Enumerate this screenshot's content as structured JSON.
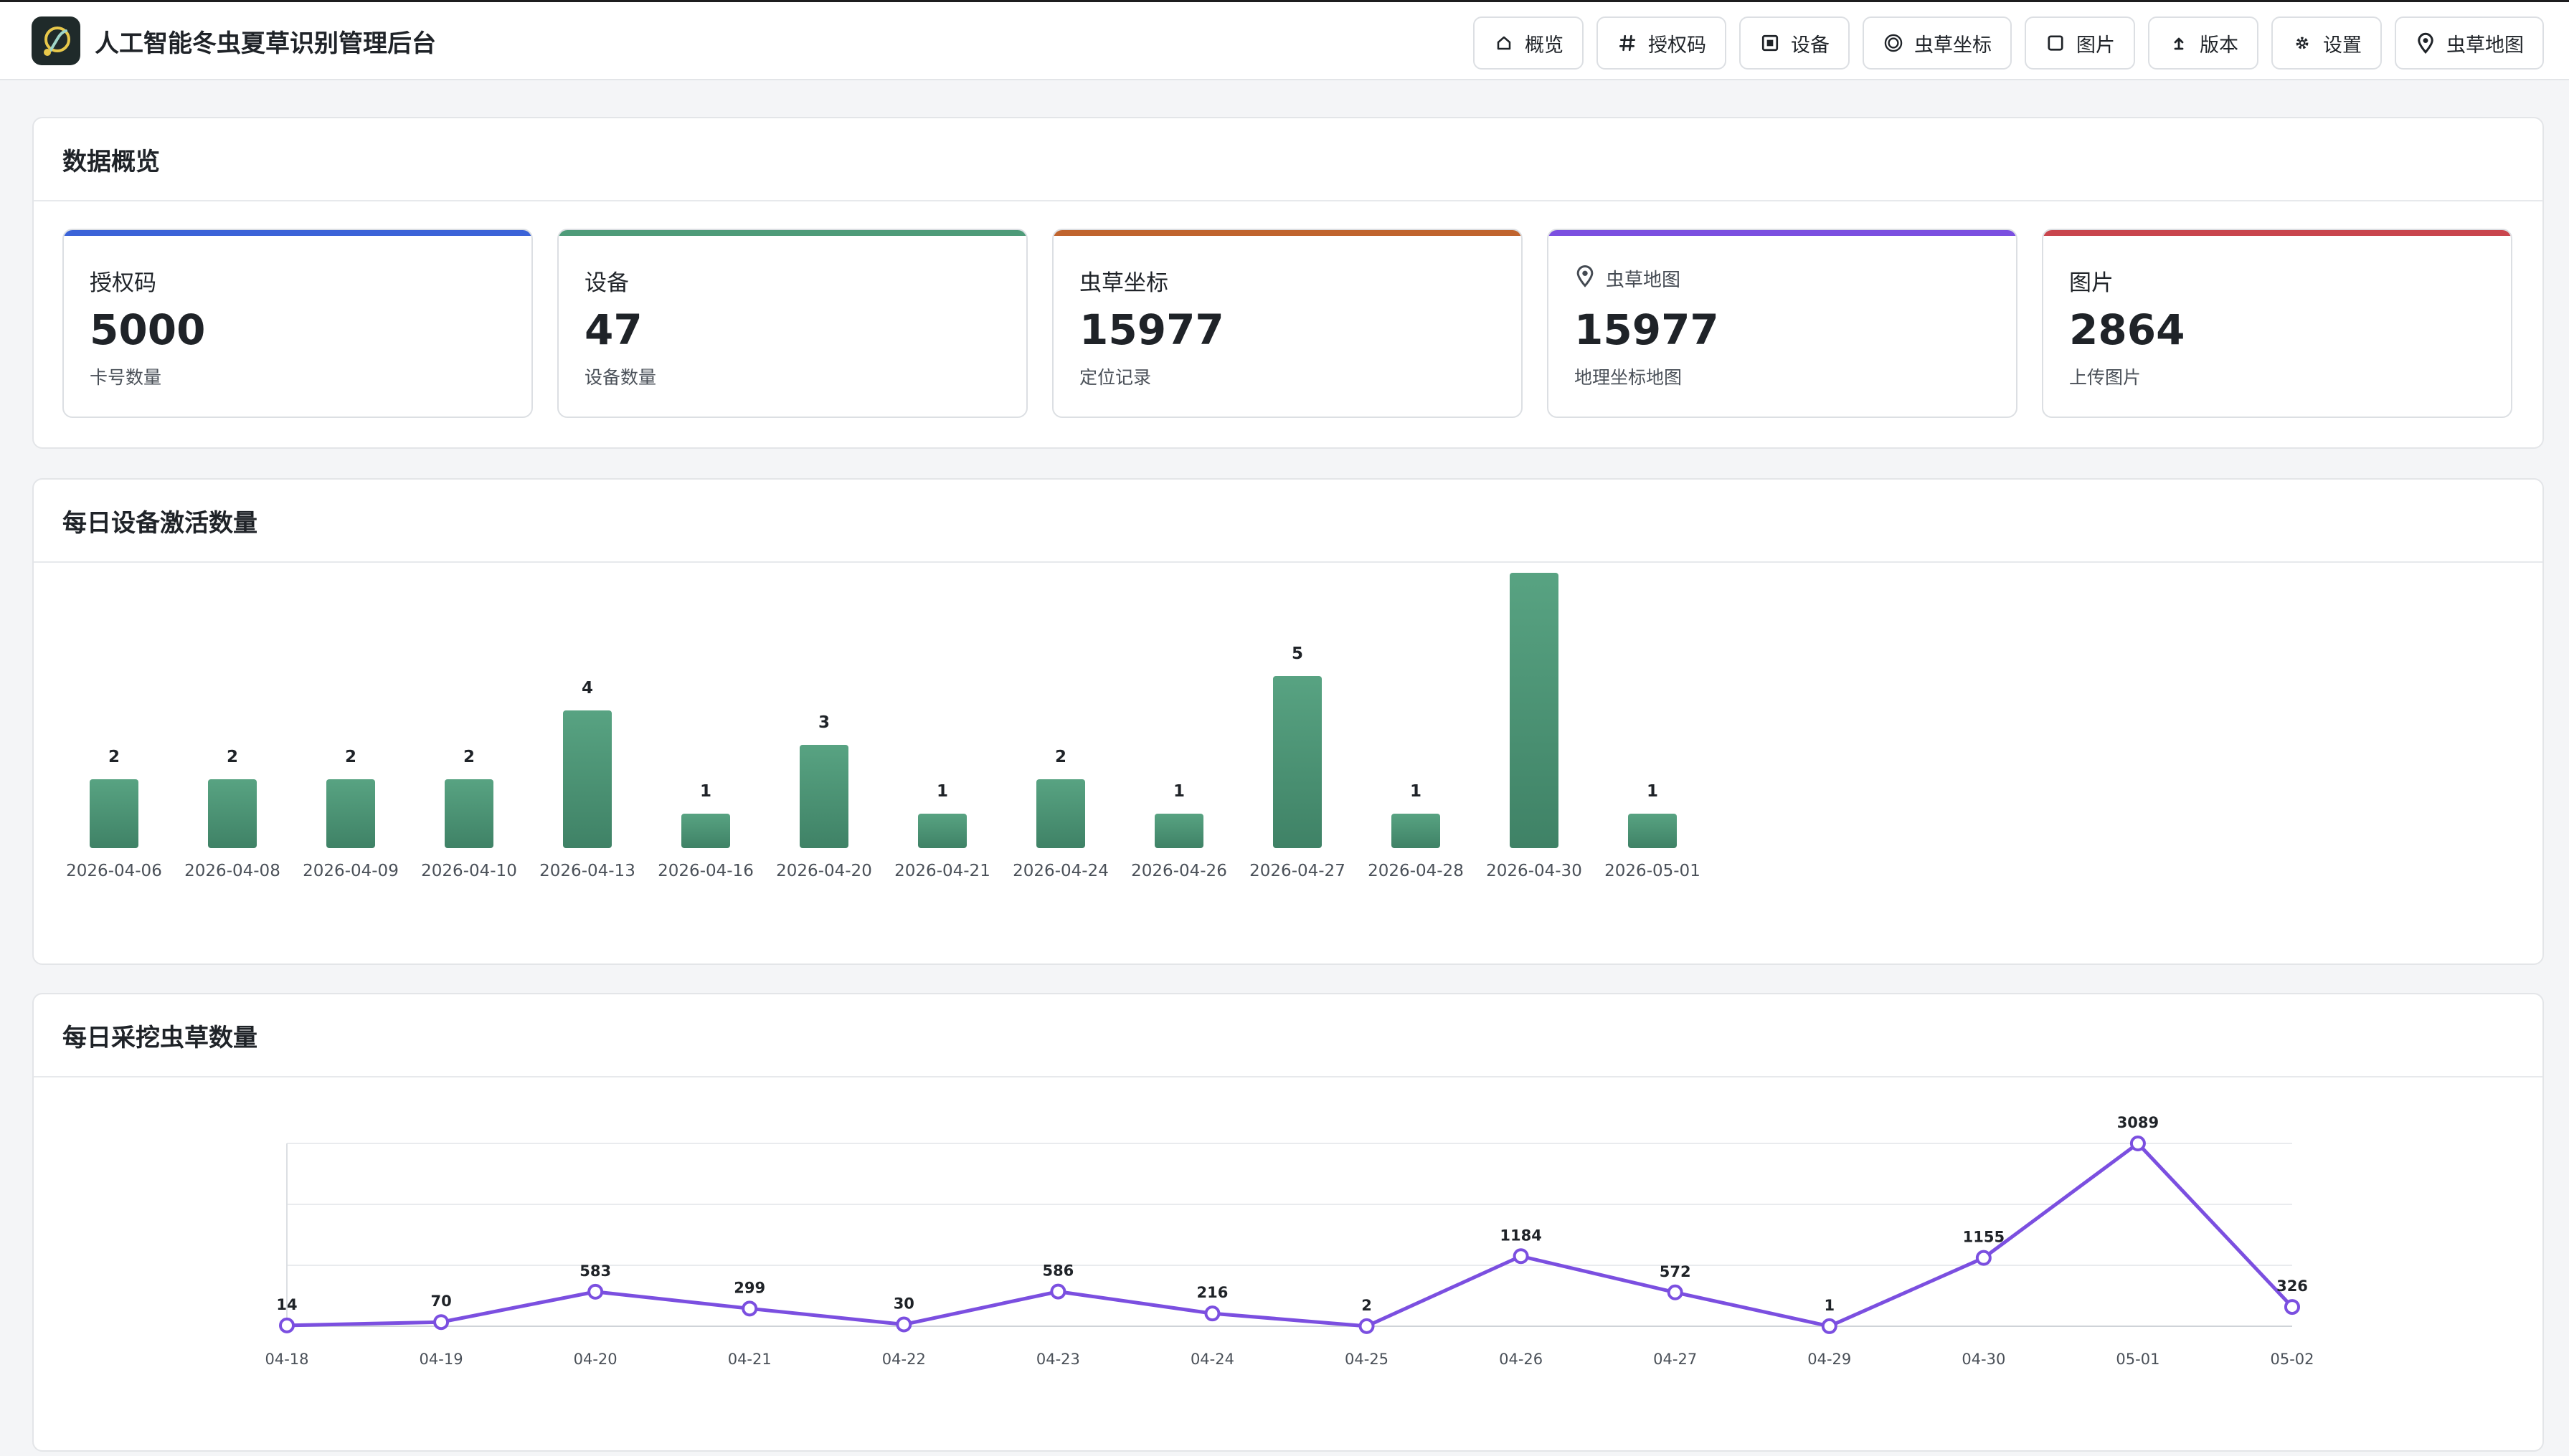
{
  "app": {
    "title": "人工智能冬虫夏草识别管理后台"
  },
  "nav": [
    {
      "label": "概览",
      "icon": "home-icon"
    },
    {
      "label": "授权码",
      "icon": "hash-icon"
    },
    {
      "label": "设备",
      "icon": "device-icon"
    },
    {
      "label": "虫草坐标",
      "icon": "target-icon"
    },
    {
      "label": "图片",
      "icon": "image-icon"
    },
    {
      "label": "版本",
      "icon": "upload-icon"
    },
    {
      "label": "设置",
      "icon": "gear-icon"
    },
    {
      "label": "虫草地图",
      "icon": "map-pin-icon"
    }
  ],
  "overview": {
    "title": "数据概览",
    "cards": [
      {
        "label": "授权码",
        "value": "5000",
        "sub": "卡号数量",
        "color": "#3b63d8"
      },
      {
        "label": "设备",
        "value": "47",
        "sub": "设备数量",
        "color": "#4e9b79"
      },
      {
        "label": "虫草坐标",
        "value": "15977",
        "sub": "定位记录",
        "color": "#c0642e"
      },
      {
        "label": "虫草地图",
        "value": "15977",
        "sub": "地理坐标地图",
        "color": "#7b4fe0",
        "icon": "map-pin-icon"
      },
      {
        "label": "图片",
        "value": "2864",
        "sub": "上传图片",
        "color": "#c9454d"
      }
    ]
  },
  "activation": {
    "title": "每日设备激活数量"
  },
  "harvest": {
    "title": "每日采挖虫草数量"
  },
  "chart_data": [
    {
      "type": "bar",
      "title": "每日设备激活数量",
      "categories": [
        "2026-04-06",
        "2026-04-08",
        "2026-04-09",
        "2026-04-10",
        "2026-04-13",
        "2026-04-16",
        "2026-04-20",
        "2026-04-21",
        "2026-04-24",
        "2026-04-26",
        "2026-04-27",
        "2026-04-28",
        "2026-04-30",
        "2026-05-01"
      ],
      "values": [
        2,
        2,
        2,
        2,
        4,
        1,
        3,
        1,
        2,
        1,
        5,
        1,
        8,
        1
      ],
      "color": "#4e9b79",
      "grid": false
    },
    {
      "type": "line",
      "title": "每日采挖虫草数量",
      "categories": [
        "04-18",
        "04-19",
        "04-20",
        "04-21",
        "04-22",
        "04-23",
        "04-24",
        "04-25",
        "04-26",
        "04-27",
        "04-29",
        "04-30",
        "05-01",
        "05-02"
      ],
      "values": [
        14,
        70,
        583,
        299,
        30,
        586,
        216,
        2,
        1184,
        572,
        1,
        1155,
        3089,
        326
      ],
      "color": "#7b4fe0",
      "grid": true,
      "ylim": [
        0,
        3089
      ]
    }
  ]
}
